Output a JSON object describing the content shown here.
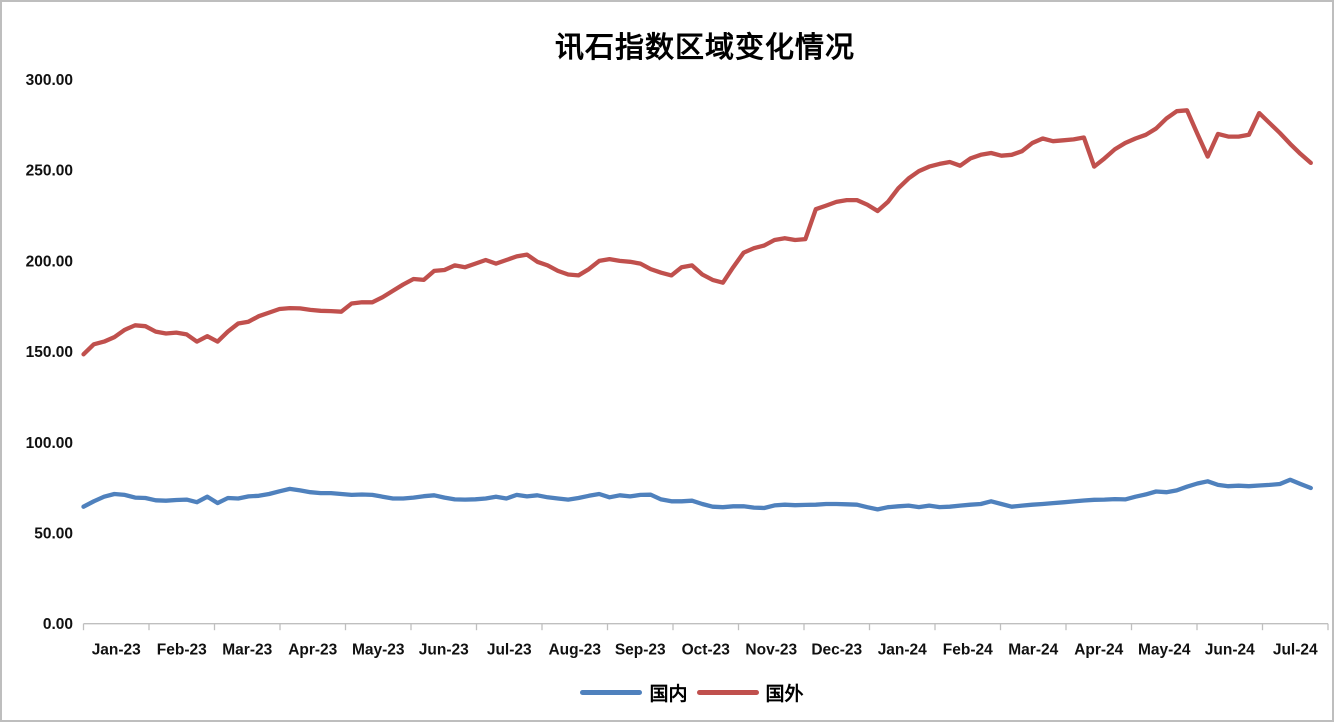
{
  "chart_data": {
    "type": "line",
    "title": "讯石指数区域变化情况",
    "x_tick_labels": [
      "Jan-23",
      "Feb-23",
      "Mar-23",
      "Apr-23",
      "May-23",
      "Jun-23",
      "Jul-23",
      "Aug-23",
      "Sep-23",
      "Oct-23",
      "Nov-23",
      "Dec-23",
      "Jan-24",
      "Feb-24",
      "Mar-24",
      "Apr-24",
      "May-24",
      "Jun-24",
      "Jul-24"
    ],
    "y_ticks": [
      300,
      250,
      200,
      150,
      100,
      50,
      0
    ],
    "y_tick_decimals": 2,
    "ylim": [
      0,
      300
    ],
    "grid": false,
    "legend_position": "bottom",
    "points_per_month": 6.3,
    "series": [
      {
        "name": "国内",
        "color": "#4F81BD",
        "values": [
          64.5,
          67.5,
          70,
          71.5,
          71,
          69.5,
          69.3,
          68,
          67.8,
          68.2,
          68.4,
          67,
          70,
          66.5,
          69.3,
          69,
          70.2,
          70.5,
          71.5,
          73,
          74.3,
          73.5,
          72.5,
          72,
          72,
          71.5,
          71,
          71.2,
          71,
          70,
          69,
          69,
          69.5,
          70.3,
          70.8,
          69.5,
          68.5,
          68.4,
          68.6,
          69,
          70,
          69,
          71,
          70.2,
          70.8,
          69.7,
          69,
          68.4,
          69.3,
          70.5,
          71.5,
          69.7,
          70.8,
          70.2,
          71,
          71.1,
          68.5,
          67.5,
          67.5,
          67.8,
          66,
          64.5,
          64.2,
          64.7,
          64.7,
          64,
          63.8,
          65.2,
          65.6,
          65.3,
          65.5,
          65.6,
          66,
          66,
          65.8,
          65.6,
          64.2,
          63,
          64.2,
          64.7,
          65.1,
          64.3,
          65.1,
          64.3,
          64.5,
          65.1,
          65.6,
          66,
          67.5,
          66,
          64.5,
          65.1,
          65.6,
          66,
          66.5,
          66.9,
          67.4,
          67.9,
          68.3,
          68.4,
          68.7,
          68.5,
          70,
          71.3,
          72.9,
          72.5,
          73.5,
          75.5,
          77.3,
          78.5,
          76.5,
          75.8,
          76.1,
          75.8,
          76.2,
          76.5,
          77,
          79.3,
          77,
          74.8
        ]
      },
      {
        "name": "国外",
        "color": "#C0504D",
        "values": [
          148.5,
          154,
          155.5,
          158,
          162,
          164.5,
          164,
          161,
          160,
          160.5,
          159.5,
          155.5,
          158.5,
          155.5,
          161,
          165.5,
          166.5,
          169.5,
          171.5,
          173.5,
          174,
          173.8,
          173,
          172.5,
          172.3,
          172,
          176.5,
          177.2,
          177.2,
          180,
          183.5,
          187,
          190,
          189.5,
          194.5,
          195,
          197.5,
          196.5,
          198.5,
          200.5,
          198.5,
          200.5,
          202.5,
          203.5,
          199.5,
          197.5,
          194.5,
          192.5,
          192,
          195.5,
          200,
          201,
          200,
          199.5,
          198.5,
          195.5,
          193.5,
          192,
          196.5,
          197.5,
          192.5,
          189.5,
          188,
          196.5,
          204.5,
          207,
          208.5,
          211.5,
          212.5,
          211.5,
          212,
          228.5,
          230.5,
          232.5,
          233.5,
          233.5,
          231,
          227.5,
          232.5,
          240,
          245.5,
          249.5,
          252,
          253.5,
          254.5,
          252.5,
          256.5,
          258.5,
          259.5,
          258,
          258.5,
          260.5,
          265,
          267.5,
          266,
          266.5,
          267,
          268,
          252,
          256.5,
          261.5,
          265,
          267.5,
          269.5,
          273,
          278.5,
          282.5,
          283,
          270,
          257.5,
          270,
          268.5,
          268.5,
          269.5,
          281.5,
          276,
          270.5,
          264.5,
          259,
          254
        ]
      }
    ]
  },
  "colors": {
    "axis_line": "#BFBFBF",
    "tick_label": "#111111",
    "title_text": "#000000",
    "frame_border": "#BEBEBE"
  }
}
